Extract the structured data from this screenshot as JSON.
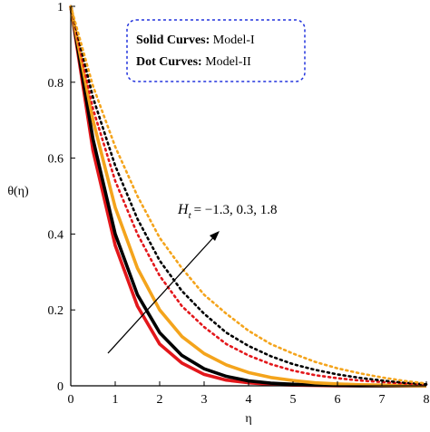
{
  "chart_data": {
    "type": "line",
    "xlabel": "η",
    "ylabel": "θ(η)",
    "x": [
      0,
      0.5,
      1,
      1.5,
      2,
      2.5,
      3,
      3.5,
      4,
      4.5,
      5,
      5.5,
      6,
      6.5,
      7,
      7.5,
      8
    ],
    "series": [
      {
        "color": "#e3171b",
        "style": "solid",
        "values": [
          1,
          0.62,
          0.37,
          0.21,
          0.11,
          0.06,
          0.03,
          0.015,
          0.008,
          0.004,
          0.002,
          0.001,
          0,
          0,
          0,
          0,
          0
        ]
      },
      {
        "color": "#000000",
        "style": "solid",
        "values": [
          1,
          0.65,
          0.4,
          0.24,
          0.14,
          0.08,
          0.045,
          0.025,
          0.013,
          0.007,
          0.004,
          0.002,
          0.001,
          0,
          0,
          0,
          0
        ]
      },
      {
        "color": "#f4a41c",
        "style": "solid",
        "values": [
          1,
          0.7,
          0.47,
          0.31,
          0.2,
          0.13,
          0.085,
          0.055,
          0.035,
          0.022,
          0.014,
          0.008,
          0.005,
          0.003,
          0.002,
          0.001,
          0
        ]
      },
      {
        "color": "#e3171b",
        "style": "dotted",
        "values": [
          1,
          0.73,
          0.54,
          0.4,
          0.29,
          0.21,
          0.155,
          0.11,
          0.08,
          0.057,
          0.04,
          0.028,
          0.02,
          0.014,
          0.01,
          0.006,
          0.003
        ]
      },
      {
        "color": "#000000",
        "style": "dotted",
        "values": [
          1,
          0.76,
          0.58,
          0.44,
          0.33,
          0.25,
          0.19,
          0.14,
          0.105,
          0.078,
          0.057,
          0.042,
          0.03,
          0.021,
          0.014,
          0.008,
          0.004
        ]
      },
      {
        "color": "#f4a41c",
        "style": "dotted",
        "values": [
          1,
          0.79,
          0.63,
          0.5,
          0.39,
          0.31,
          0.24,
          0.19,
          0.145,
          0.11,
          0.085,
          0.063,
          0.046,
          0.033,
          0.022,
          0.013,
          0.006
        ]
      }
    ],
    "xlim": [
      0,
      8
    ],
    "xticks": [
      0,
      1,
      2,
      3,
      4,
      5,
      6,
      7,
      8
    ],
    "ylim": [
      0,
      1
    ],
    "yticks": [
      0,
      0.2,
      0.4,
      0.6,
      0.8,
      1
    ],
    "annotations": [
      {
        "bold": "Solid Curves:",
        "text": "Model-I"
      },
      {
        "bold": "Dot Curves:",
        "text": "Model-II"
      }
    ],
    "arrow_label": {
      "main": "H",
      "sub": "t",
      "text": "= −1.3, 0.3, 1.8"
    }
  }
}
